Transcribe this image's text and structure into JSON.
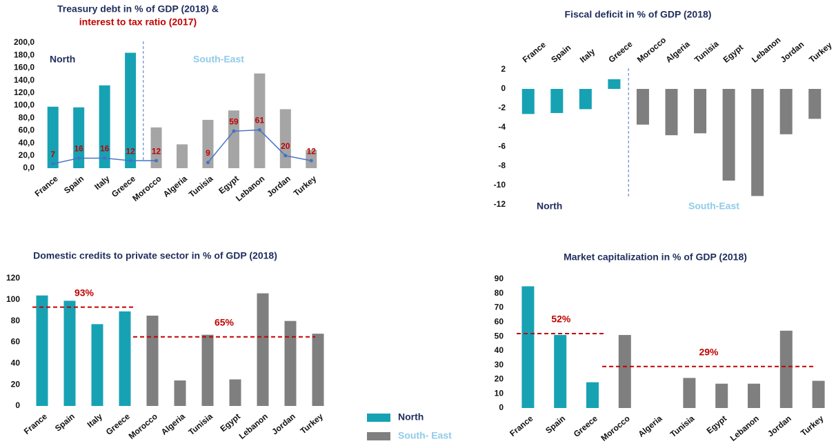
{
  "chart_data": [
    {
      "type": "bar",
      "title": "Treasury debt in % of GDP (2018) &",
      "subtitle": "interest to tax ratio (2017)",
      "categories": [
        "France",
        "Spain",
        "Italy",
        "Greece",
        "Morocco",
        "Algeria",
        "Tunisia",
        "Egypt",
        "Lebanon",
        "Jordan",
        "Turkey"
      ],
      "series": [
        {
          "name": "North",
          "color": "#17a2b4",
          "values": [
            98,
            97,
            132,
            184,
            null,
            null,
            null,
            null,
            null,
            null,
            null
          ]
        },
        {
          "name": "South-East",
          "color": "#a5a5a5",
          "values": [
            null,
            null,
            null,
            null,
            65,
            38,
            77,
            92,
            151,
            94,
            29
          ]
        },
        {
          "type": "line",
          "color": "#4472c4",
          "values": [
            7,
            16,
            16,
            12,
            12,
            null,
            9,
            59,
            61,
            20,
            12
          ]
        }
      ],
      "ylim": [
        0,
        200
      ],
      "yticks": [
        {
          "value": 0,
          "label": "0,0"
        },
        {
          "value": 20,
          "label": "20,0"
        },
        {
          "value": 40,
          "label": "40,0"
        },
        {
          "value": 60,
          "label": "60,0"
        },
        {
          "value": 80,
          "label": "80,0"
        },
        {
          "value": 100,
          "label": "100,0"
        },
        {
          "value": 120,
          "label": "120,0"
        },
        {
          "value": 140,
          "label": "140,0"
        },
        {
          "value": 160,
          "label": "160,0"
        },
        {
          "value": 180,
          "label": "180,0"
        },
        {
          "value": 200,
          "label": "200,0"
        }
      ],
      "divider": true
    },
    {
      "type": "bar",
      "title": "Fiscal deficit in % of GDP (2018)",
      "categories": [
        "France",
        "Spain",
        "Italy",
        "Greece",
        "Morocco",
        "Algeria",
        "Tunisia",
        "Egypt",
        "Lebanon",
        "Jordan",
        "Turkey"
      ],
      "series": [
        {
          "name": "North",
          "color": "#17a2b4",
          "values": [
            -2.6,
            -2.5,
            -2.1,
            1.0,
            null,
            null,
            null,
            null,
            null,
            null,
            null
          ]
        },
        {
          "name": "South-East",
          "color": "#7f7f7f",
          "values": [
            null,
            null,
            null,
            null,
            -3.7,
            -4.8,
            -4.6,
            -9.5,
            -11.1,
            -4.7,
            -3.1
          ]
        }
      ],
      "ylim": [
        -12,
        2
      ],
      "yticks": [
        2,
        0,
        -2,
        -4,
        -6,
        -8,
        -10,
        -12
      ],
      "divider": true,
      "x_labels_top": true
    },
    {
      "type": "bar",
      "title": "Domestic credits to private sector in % of GDP (2018)",
      "categories": [
        "France",
        "Spain",
        "Italy",
        "Greece",
        "Morocco",
        "Algeria",
        "Tunisia",
        "Egypt",
        "Lebanon",
        "Jordan",
        "Turkey"
      ],
      "series": [
        {
          "name": "North",
          "color": "#17a2b4",
          "values": [
            104,
            99,
            77,
            89,
            null,
            null,
            null,
            null,
            null,
            null,
            null
          ]
        },
        {
          "name": "South- East",
          "color": "#7f7f7f",
          "values": [
            null,
            null,
            null,
            null,
            85,
            24,
            67,
            25,
            106,
            80,
            68
          ]
        }
      ],
      "reference_lines": [
        {
          "value": 93,
          "label": "93%"
        },
        {
          "value": 65,
          "label": "65%"
        }
      ],
      "ylim": [
        0,
        120
      ],
      "yticks": [
        0,
        20,
        40,
        60,
        80,
        100,
        120
      ],
      "legend": true
    },
    {
      "type": "bar",
      "title": "Market capitalization in % of GDP (2018)",
      "categories": [
        "France",
        "Spain",
        "Greece",
        "Morocco",
        "Algeria",
        "Tunisia",
        "Egypt",
        "Lebanon",
        "Jordan",
        "Turkey"
      ],
      "series": [
        {
          "color": "#17a2b4",
          "values": [
            85,
            51,
            18,
            null,
            null,
            null,
            null,
            null,
            null,
            null
          ]
        },
        {
          "color": "#7f7f7f",
          "values": [
            null,
            null,
            null,
            51,
            null,
            21,
            17,
            17,
            54,
            19
          ]
        }
      ],
      "reference_lines": [
        {
          "value": 52,
          "label": "52%"
        },
        {
          "value": 29,
          "label": "29%"
        }
      ],
      "ylim": [
        0,
        90
      ],
      "yticks": [
        0,
        10,
        20,
        30,
        40,
        50,
        60,
        70,
        80,
        90
      ]
    }
  ]
}
